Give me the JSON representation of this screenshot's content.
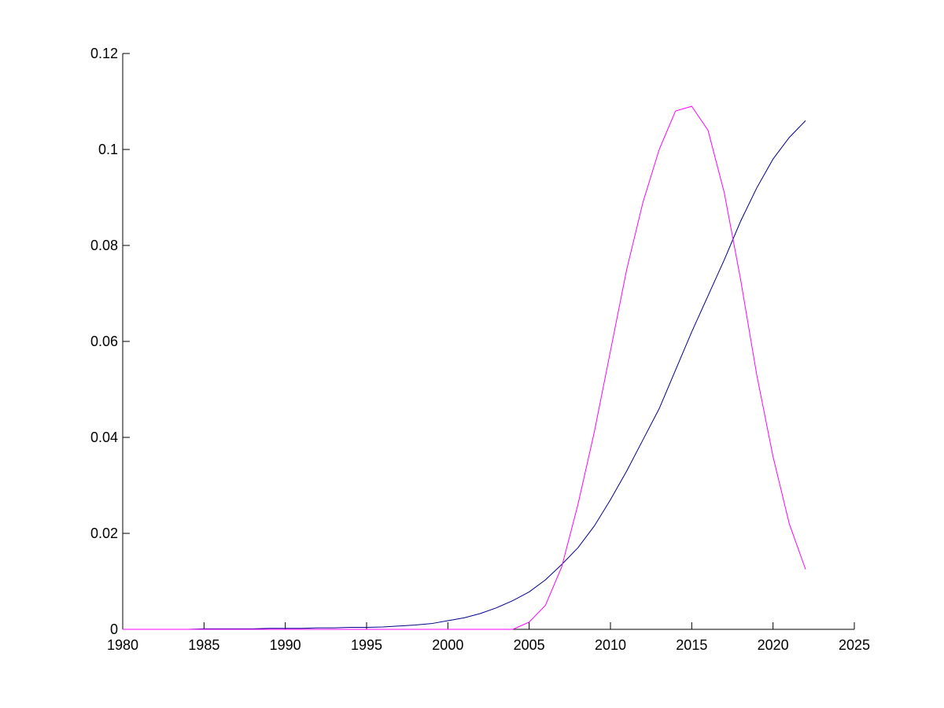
{
  "chart_data": {
    "type": "line",
    "x": [
      1980,
      1981,
      1982,
      1983,
      1984,
      1985,
      1986,
      1987,
      1988,
      1989,
      1990,
      1991,
      1992,
      1993,
      1994,
      1995,
      1996,
      1997,
      1998,
      1999,
      2000,
      2001,
      2002,
      2003,
      2004,
      2005,
      2006,
      2007,
      2008,
      2009,
      2010,
      2011,
      2012,
      2013,
      2014,
      2015,
      2016,
      2017,
      2018,
      2019,
      2020,
      2021,
      2022
    ],
    "series": [
      {
        "color": "#00008b",
        "values": [
          0,
          0,
          0,
          0,
          0,
          0.0001,
          0.0001,
          0.0001,
          0.0001,
          0.0002,
          0.0002,
          0.0002,
          0.0003,
          0.0003,
          0.0004,
          0.0004,
          0.0005,
          0.0007,
          0.0009,
          0.0012,
          0.0018,
          0.0024,
          0.0033,
          0.0045,
          0.006,
          0.0078,
          0.0103,
          0.0135,
          0.017,
          0.0215,
          0.027,
          0.033,
          0.0395,
          0.046,
          0.054,
          0.062,
          0.0695,
          0.077,
          0.085,
          0.092,
          0.098,
          0.1025,
          0.106
        ]
      },
      {
        "color": "#ff00ff",
        "values": [
          0,
          0,
          0,
          0,
          0,
          0,
          0,
          0,
          0,
          0,
          0,
          0,
          0,
          0,
          0,
          0,
          0,
          0,
          0,
          0,
          0,
          0,
          0,
          0,
          0,
          0.0015,
          0.005,
          0.013,
          0.026,
          0.041,
          0.058,
          0.075,
          0.089,
          0.1,
          0.108,
          0.109,
          0.104,
          0.091,
          0.073,
          0.053,
          0.036,
          0.022,
          0.0125
        ]
      }
    ],
    "xlim": [
      1980,
      2025
    ],
    "xticks": [
      1980,
      1985,
      1990,
      1995,
      2000,
      2005,
      2010,
      2015,
      2020,
      2025
    ],
    "ylim": [
      0,
      0.12
    ],
    "yticks": [
      0,
      0.02,
      0.04,
      0.06,
      0.08,
      0.1,
      0.12
    ]
  }
}
